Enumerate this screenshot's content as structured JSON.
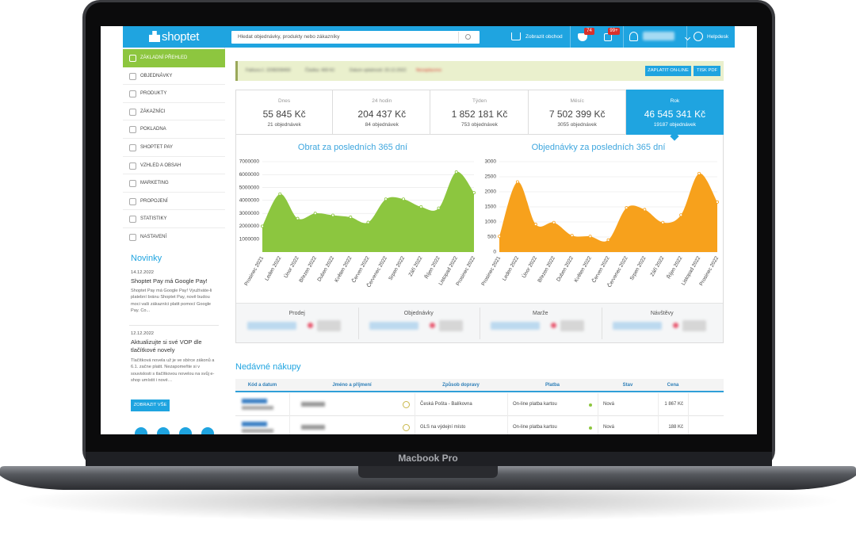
{
  "laptop_label": "Macbook Pro",
  "header": {
    "logo": "shoptet",
    "search_placeholder": "Hledat objednávky, produkty nebo zákazníky",
    "view_shop": "Zobrazit obchod",
    "badges": [
      "74",
      "99+"
    ],
    "helpdesk": "Helpdesk"
  },
  "sidebar": {
    "menu": [
      "ZÁKLADNÍ PŘEHLED",
      "OBJEDNÁVKY",
      "PRODUKTY",
      "ZÁKAZNÍCI",
      "POKLADNA",
      "SHOPTET PAY",
      "VZHLED A OBSAH",
      "MARKETING",
      "PROPOJENÍ",
      "STATISTIKY",
      "NASTAVENÍ"
    ],
    "news_title": "Novinky",
    "news": [
      {
        "date": "14.12.2022",
        "title": "Shoptet Pay má Google Pay!",
        "text": "Shoptet Pay má Google Pay! Využíváte-li platební bránu Shoptet Pay, nově budou moci vaši zákazníci platit pomocí Google Pay. Co..."
      },
      {
        "date": "12.12.2022",
        "title": "Aktualizujte si své VOP dle tlačítkové novely",
        "text": "Tlačítková novela už je ve sbírce zákonů a 6.1. začne platit. Nezapomeňte si v souvislosti s tlačítkovou novelou na svůj e-shop umístit i nové…"
      }
    ],
    "show_all": "ZOBRAZIT VŠE"
  },
  "notice": {
    "parts": [
      "Faktura č. 2208208469",
      "Částka: 469 Kč",
      "Datum splatnosti: 20.12.2022",
      "Nezaplaceno"
    ],
    "buttons": [
      "ZAPLATIT ON-LINE",
      "TISK PDF"
    ]
  },
  "stats": [
    {
      "period": "Dnes",
      "revenue": "55 845 Kč",
      "orders": "21 objednávek"
    },
    {
      "period": "24 hodin",
      "revenue": "204 437 Kč",
      "orders": "84 objednávek"
    },
    {
      "period": "Týden",
      "revenue": "1 852 181 Kč",
      "orders": "753 objednávek"
    },
    {
      "period": "Měsíc",
      "revenue": "7 502 399 Kč",
      "orders": "3055 objednávek"
    },
    {
      "period": "Rok",
      "revenue": "46 545 341 Kč",
      "orders": "19187 objednávek"
    }
  ],
  "chart_data": [
    {
      "type": "area",
      "title": "Obrat za posledních 365 dní",
      "color": "#8cc63f",
      "categories": [
        "Prosinec 2021",
        "Leden 2022",
        "Únor 2022",
        "Březen 2022",
        "Duben 2022",
        "Květen 2022",
        "Červen 2022",
        "Červenec 2022",
        "Srpen 2022",
        "Září 2022",
        "Říjen 2022",
        "Listopad 2022",
        "Prosinec 2022"
      ],
      "values": [
        2000000,
        4500000,
        2600000,
        3000000,
        2850000,
        2700000,
        2300000,
        4100000,
        4100000,
        3500000,
        3400000,
        6200000,
        4600000
      ],
      "ylim": [
        0,
        7000000
      ],
      "yticks": [
        1000000,
        2000000,
        3000000,
        4000000,
        5000000,
        6000000,
        7000000
      ],
      "grid": true
    },
    {
      "type": "area",
      "title": "Objednávky za posledních 365 dní",
      "color": "#f7a11c",
      "categories": [
        "Prosinec 2021",
        "Leden 2022",
        "Únor 2022",
        "Březen 2022",
        "Duben 2022",
        "Květen 2022",
        "Červen 2022",
        "Červenec 2022",
        "Srpen 2022",
        "Září 2022",
        "Říjen 2022",
        "Listopad 2022",
        "Prosinec 2022"
      ],
      "values": [
        520,
        2330,
        920,
        980,
        550,
        520,
        400,
        1470,
        1410,
        980,
        1230,
        2610,
        1660
      ],
      "ylim": [
        0,
        3000
      ],
      "yticks": [
        0,
        500,
        1000,
        1500,
        2000,
        2500,
        3000
      ],
      "grid": true
    }
  ],
  "summary": [
    "Prodej",
    "Objednávky",
    "Marže",
    "Návštěvy"
  ],
  "recent": {
    "title": "Nedávné nákupy",
    "columns": [
      "Kód a datum",
      "Jméno a příjmení",
      "Způsob dopravy",
      "Platba",
      "Stav",
      "Cena"
    ],
    "rows": [
      {
        "shipping": "Česká Pošta - Balíkovna",
        "payment": "On-line platba kartou",
        "status": "Nová",
        "price": "1 867 Kč"
      },
      {
        "shipping": "GLS na výdejní místo",
        "payment": "On-line platba kartou",
        "status": "Nová",
        "price": "188 Kč"
      }
    ]
  }
}
